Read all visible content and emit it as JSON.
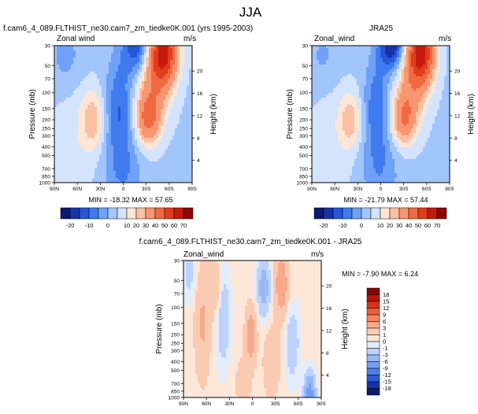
{
  "page_title": "JJA",
  "panels": [
    {
      "id": "model",
      "title": "f.cam6_4_089.FLTHIST_ne30.cam7_zm_tiedke0K.001 (yrs 1995-2003)",
      "left_label": "Zonal wind",
      "right_label": "m/s",
      "minmax": "MIN = -18.32  MAX = 57.65"
    },
    {
      "id": "obs",
      "title": "JRA25",
      "left_label": "Zonal_wind",
      "right_label": "m/s",
      "minmax": "MIN = -21.79  MAX = 57.44"
    },
    {
      "id": "diff",
      "title": "f.cam6_4_089.FLTHIST_ne30.cam7_zm_tiedke0K.001 - JRA25",
      "left_label": "Zonal_wind",
      "right_label": "m/s",
      "minmax": "MIN = -7.90  MAX =  6.24"
    }
  ],
  "axes": {
    "ylabel": "Pressure (mb)",
    "y2label": "Height (km)",
    "pressure_ticks": [
      "30",
      "50",
      "70",
      "100",
      "150",
      "200",
      "250",
      "300",
      "400",
      "500",
      "700",
      "850",
      "1000"
    ],
    "height_ticks": [
      "20",
      "16",
      "12",
      "8",
      "4"
    ],
    "lat_ticks": [
      "90N",
      "60N",
      "30N",
      "0",
      "30S",
      "60S",
      "90S"
    ]
  },
  "colors": {
    "wind_scale": [
      "#0a1a6e",
      "#1733a6",
      "#2456d9",
      "#3f7bef",
      "#6ea1f7",
      "#a2c5fb",
      "#d4e4fd",
      "#fde6d6",
      "#fbc0a2",
      "#f79670",
      "#f06a41",
      "#e33c1d",
      "#c41b0e",
      "#8f0606"
    ],
    "diff_scale": [
      "#0a1a6e",
      "#1733a6",
      "#2a5bcf",
      "#4a80ea",
      "#739ff2",
      "#98b9f6",
      "#bdd2fa",
      "#e3ecfd",
      "#fde7d8",
      "#fbcab2",
      "#f8a989",
      "#f4855f",
      "#ec5c37",
      "#d8331a",
      "#b3150c",
      "#840606"
    ]
  },
  "chart_data": [
    {
      "type": "heatmap",
      "title": "f.cam6_4_089.FLTHIST_ne30.cam7_zm_tiedke0K.001 (yrs 1995-2003)",
      "variable": "Zonal wind",
      "units": "m/s",
      "x": [
        "90N",
        "60N",
        "30N",
        "0",
        "30S",
        "60S",
        "90S"
      ],
      "y_pressure_mb": [
        30,
        50,
        70,
        100,
        150,
        200,
        250,
        300,
        400,
        500,
        700,
        850,
        1000
      ],
      "min": -18.32,
      "max": 57.65,
      "features": [
        {
          "lat": -20,
          "p": 30,
          "u": -17
        },
        {
          "lat": 40,
          "p": 200,
          "u": 20
        },
        {
          "lat": -30,
          "p": 200,
          "u": 35
        },
        {
          "lat": -52,
          "p": 40,
          "u": 57
        }
      ]
    },
    {
      "type": "heatmap",
      "title": "JRA25",
      "variable": "Zonal_wind",
      "units": "m/s",
      "x": [
        "90N",
        "60N",
        "30N",
        "0",
        "30S",
        "60S",
        "90S"
      ],
      "y_pressure_mb": [
        30,
        50,
        70,
        100,
        150,
        200,
        250,
        300,
        400,
        500,
        700,
        850,
        1000
      ],
      "min": -21.79,
      "max": 57.44,
      "features": [
        {
          "lat": -15,
          "p": 30,
          "u": -21
        },
        {
          "lat": 40,
          "p": 200,
          "u": 20
        },
        {
          "lat": -30,
          "p": 200,
          "u": 33
        },
        {
          "lat": -52,
          "p": 40,
          "u": 57
        }
      ]
    },
    {
      "type": "heatmap",
      "title": "f.cam6_4_089.FLTHIST_ne30.cam7_zm_tiedke0K.001 - JRA25",
      "variable": "Zonal_wind",
      "units": "m/s",
      "x": [
        "90N",
        "60N",
        "30N",
        "0",
        "30S",
        "60S",
        "90S"
      ],
      "y_pressure_mb": [
        30,
        50,
        70,
        100,
        150,
        200,
        250,
        300,
        400,
        500,
        700,
        850,
        1000
      ],
      "min": -7.9,
      "max": 6.24,
      "features": [
        {
          "lat": 65,
          "p": 150,
          "u": 3
        },
        {
          "lat": 2,
          "p": 200,
          "u": 4
        },
        {
          "lat": -40,
          "p": 50,
          "u": 5
        },
        {
          "lat": -15,
          "p": 60,
          "u": -5
        },
        {
          "lat": 38,
          "p": 120,
          "u": -3
        },
        {
          "lat": -75,
          "p": 900,
          "u": -8
        }
      ]
    }
  ],
  "colorbars": {
    "wind": {
      "labels": [
        "-20",
        "-10",
        "0",
        "10",
        "20",
        "30",
        "40",
        "50",
        "60",
        "70"
      ]
    },
    "diff": {
      "labels": [
        "18",
        "15",
        "12",
        "9",
        "6",
        "3",
        "1",
        "0",
        "-1",
        "-3",
        "-6",
        "-9",
        "-12",
        "-15",
        "-18"
      ]
    }
  }
}
